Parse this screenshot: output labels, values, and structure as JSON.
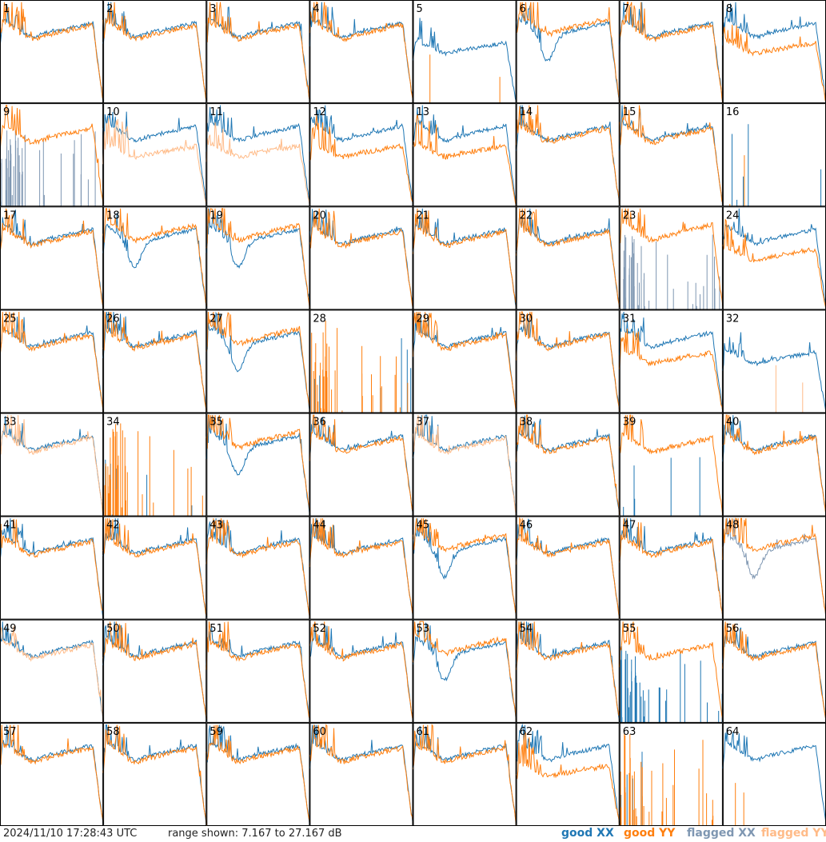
{
  "chart_data": {
    "type": "line",
    "grid": {
      "rows": 8,
      "cols": 8
    },
    "panel_labels": [
      "1",
      "2",
      "3",
      "4",
      "5",
      "6",
      "7",
      "8",
      "9",
      "10",
      "11",
      "12",
      "13",
      "14",
      "15",
      "16",
      "17",
      "18",
      "19",
      "20",
      "21",
      "22",
      "23",
      "24",
      "25",
      "26",
      "27",
      "28",
      "29",
      "30",
      "31",
      "32",
      "33",
      "34",
      "35",
      "36",
      "37",
      "38",
      "39",
      "40",
      "41",
      "42",
      "43",
      "44",
      "45",
      "46",
      "47",
      "48",
      "49",
      "50",
      "51",
      "52",
      "53",
      "54",
      "55",
      "56",
      "57",
      "58",
      "59",
      "60",
      "61",
      "62",
      "63",
      "64"
    ],
    "ylim": [
      7.167,
      27.167
    ],
    "y_unit": "dB",
    "series": [
      {
        "name": "good XX",
        "color": "#1f77b4"
      },
      {
        "name": "good YY",
        "color": "#ff7f0e"
      },
      {
        "name": "flagged XX",
        "color": "#7f97b2"
      },
      {
        "name": "flagged YY",
        "color": "#ffbb88"
      }
    ],
    "flagged_xx": [
      9,
      23,
      48
    ],
    "flagged_yy": [
      10,
      11,
      32,
      33,
      37,
      49
    ],
    "yy_above": [
      6,
      18,
      19,
      23,
      27,
      35,
      45,
      48,
      53
    ],
    "yy_low": [
      8,
      10,
      11,
      12,
      13,
      24,
      31,
      34,
      62,
      64
    ],
    "xx_low": [
      5,
      28,
      32,
      63
    ],
    "xx_dead": [
      9,
      16,
      23,
      28,
      34,
      39,
      55,
      63
    ],
    "xx_sparse": [
      64
    ],
    "yy_dead": [
      5,
      16,
      32,
      64
    ],
    "yy_sparse": [
      28,
      34,
      63
    ],
    "both_spiky": [
      9,
      23,
      55
    ]
  },
  "footer": {
    "timestamp": "2024/11/10 17:28:43 UTC",
    "range_text": "range shown: 7.167 to 27.167 dB",
    "legend": [
      "good XX",
      "good YY",
      "flagged XX",
      "flagged YY"
    ]
  },
  "colors": {
    "good_xx": "#1f77b4",
    "good_yy": "#ff7f0e",
    "flagged_xx": "#7f97b2",
    "flagged_yy": "#ffbb88",
    "frame": "#000000"
  }
}
